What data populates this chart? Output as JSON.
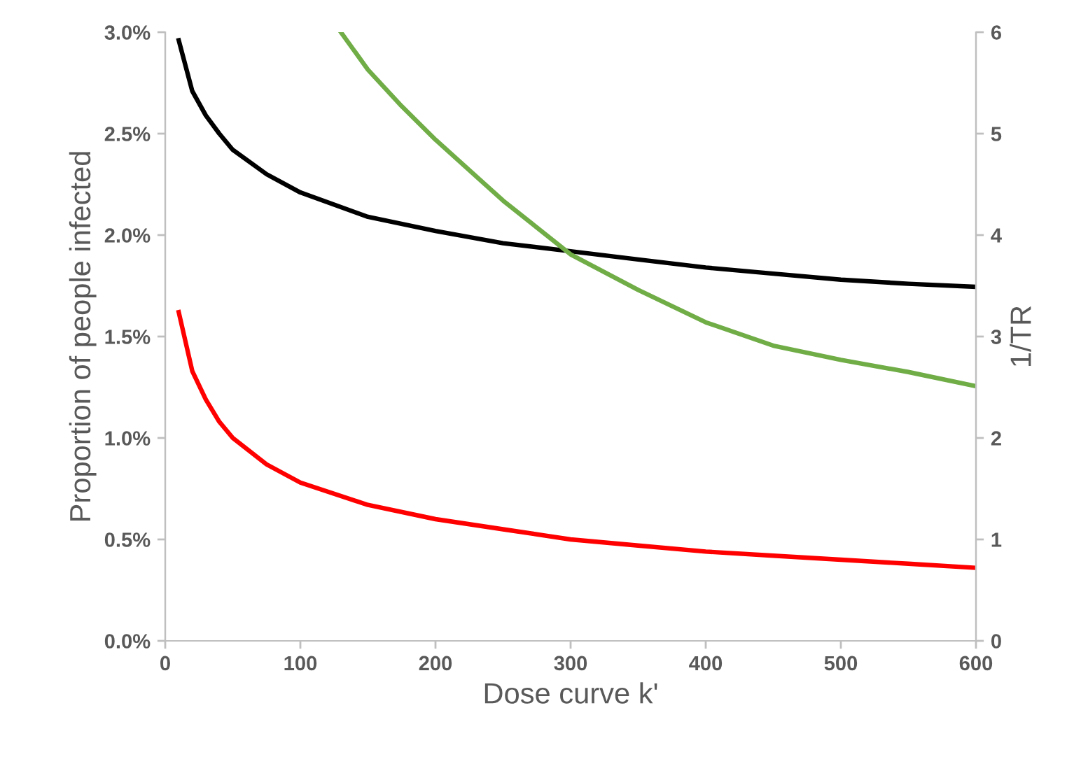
{
  "chart_data": {
    "type": "line",
    "xlabel": "Dose curve k'",
    "ylabel": "Proportion of people infected",
    "y2label": "1/TR",
    "xlim": [
      0,
      600
    ],
    "xticks": [
      0,
      100,
      200,
      300,
      400,
      500,
      600
    ],
    "ylim": [
      0,
      3
    ],
    "yticks": [
      {
        "value": 0,
        "label": "0.0%"
      },
      {
        "value": 0.5,
        "label": "0.5%"
      },
      {
        "value": 1,
        "label": "1.0%"
      },
      {
        "value": 1.5,
        "label": "1.5%"
      },
      {
        "value": 2,
        "label": "2.0%"
      },
      {
        "value": 2.5,
        "label": "2.5%"
      },
      {
        "value": 3,
        "label": "3.0%"
      }
    ],
    "y2lim": [
      0,
      6
    ],
    "y2ticks": [
      0,
      1,
      2,
      3,
      4,
      5,
      6
    ],
    "grid": false,
    "legend": false,
    "marker": "none",
    "line_style": "solid",
    "series": [
      {
        "color": "#000000",
        "x": [
          10,
          20,
          30,
          40,
          50,
          75,
          100,
          150,
          200,
          250,
          300,
          350,
          400,
          450,
          500,
          550,
          600
        ],
        "values": [
          2.96,
          2.71,
          2.59,
          2.5,
          2.42,
          2.3,
          2.21,
          2.09,
          2.02,
          1.96,
          1.92,
          1.88,
          1.84,
          1.81,
          1.78,
          1.76,
          1.745
        ]
      },
      {
        "color": "#ff0000",
        "x": [
          10,
          20,
          30,
          40,
          50,
          75,
          100,
          150,
          200,
          250,
          300,
          350,
          400,
          450,
          500,
          550,
          600
        ],
        "values": [
          1.62,
          1.33,
          1.19,
          1.08,
          1.0,
          0.87,
          0.78,
          0.67,
          0.6,
          0.55,
          0.5,
          0.47,
          0.44,
          0.42,
          0.4,
          0.38,
          0.36
        ]
      },
      {
        "color": "#70ad47",
        "axis": "y2",
        "x": [
          130,
          150,
          175,
          200,
          250,
          300,
          350,
          400,
          450,
          500,
          550,
          600
        ],
        "values": [
          6.0,
          5.63,
          5.27,
          4.94,
          4.34,
          3.81,
          3.46,
          3.14,
          2.91,
          2.77,
          2.65,
          2.51
        ]
      }
    ]
  }
}
